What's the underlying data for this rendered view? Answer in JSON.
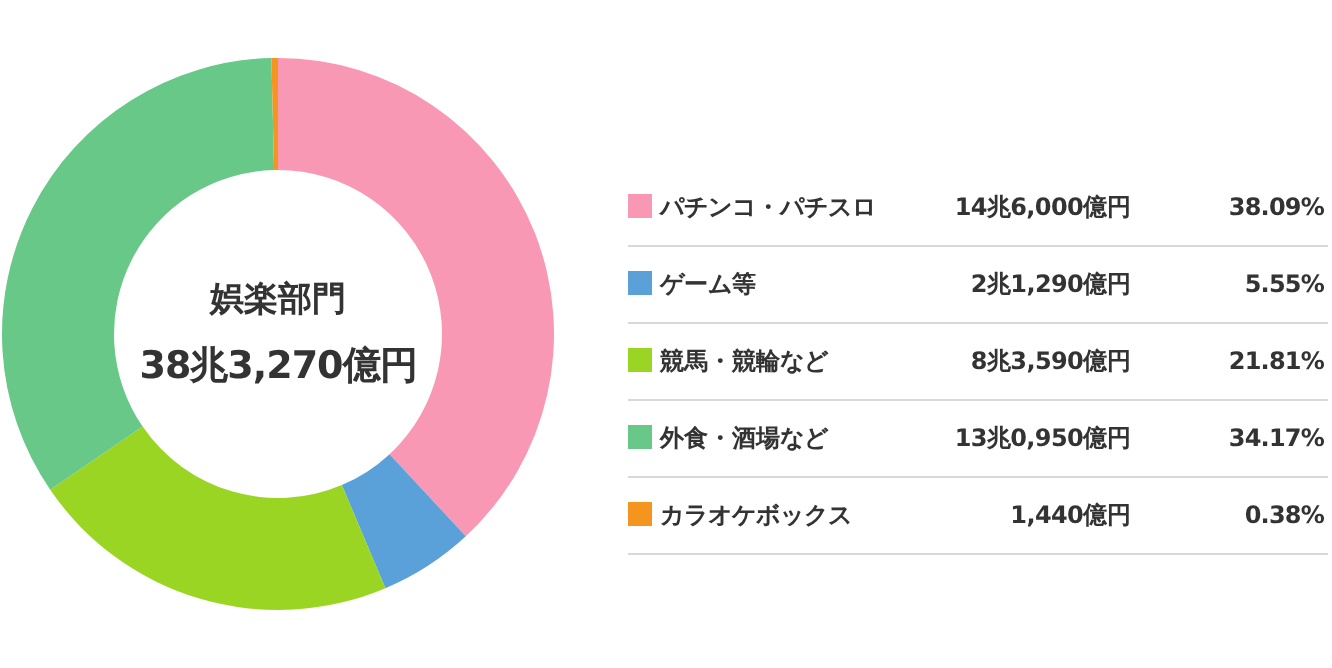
{
  "chart_data": {
    "type": "donut",
    "title": "娯楽部門",
    "subtitle": "38兆3,270億円",
    "categories": [
      "パチンコ・パチスロ",
      "ゲーム等",
      "競馬・競輪など",
      "外食・酒場など",
      "カラオケボックス"
    ],
    "values": [
      38.09,
      5.55,
      21.81,
      34.17,
      0.38
    ],
    "value_labels": [
      "38.09%",
      "5.55%",
      "21.81%",
      "34.17%",
      "0.38%"
    ],
    "annotations": [
      "14兆6,000億円",
      "2兆1,290億円",
      "8兆3,590億円",
      "13兆0,950億円",
      "1,440億円"
    ],
    "colors": [
      "#f898b4",
      "#5aa1d9",
      "#9bd523",
      "#67c888",
      "#f5951f"
    ],
    "legend": "right"
  }
}
